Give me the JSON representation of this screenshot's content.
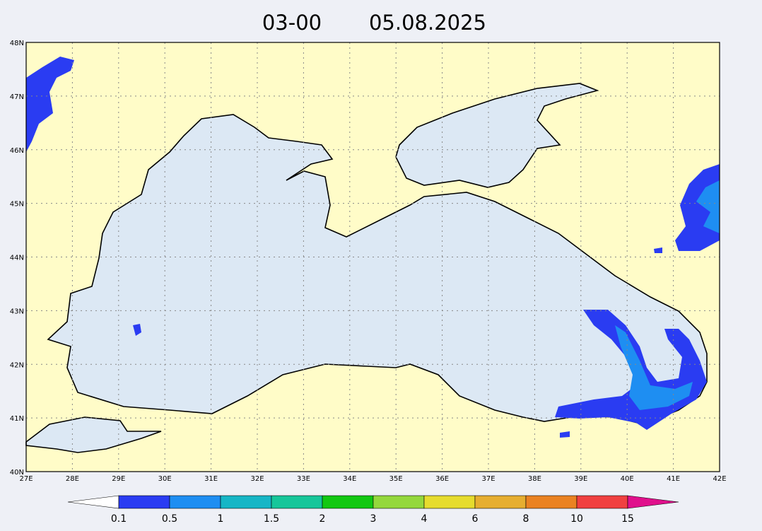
{
  "header": {
    "time": "03-00",
    "date": "05.08.2025"
  },
  "map": {
    "lat_labels": [
      "40N",
      "41N",
      "42N",
      "43N",
      "44N",
      "45N",
      "46N",
      "47N",
      "48N"
    ],
    "lon_labels": [
      "27E",
      "28E",
      "29E",
      "30E",
      "31E",
      "32E",
      "33E",
      "34E",
      "35E",
      "36E",
      "37E",
      "38E",
      "39E",
      "40E",
      "41E",
      "42E"
    ]
  },
  "legend": {
    "labels": [
      "0.1",
      "0.5",
      "1",
      "1.5",
      "2",
      "3",
      "4",
      "6",
      "8",
      "10",
      "15"
    ],
    "colors": [
      "#ffffff",
      "#2a3cf2",
      "#1e8ef2",
      "#16b6c6",
      "#16c69a",
      "#12c812",
      "#94d83c",
      "#e6dc2e",
      "#e6ae30",
      "#ea8222",
      "#f04040",
      "#e0108c"
    ]
  }
}
